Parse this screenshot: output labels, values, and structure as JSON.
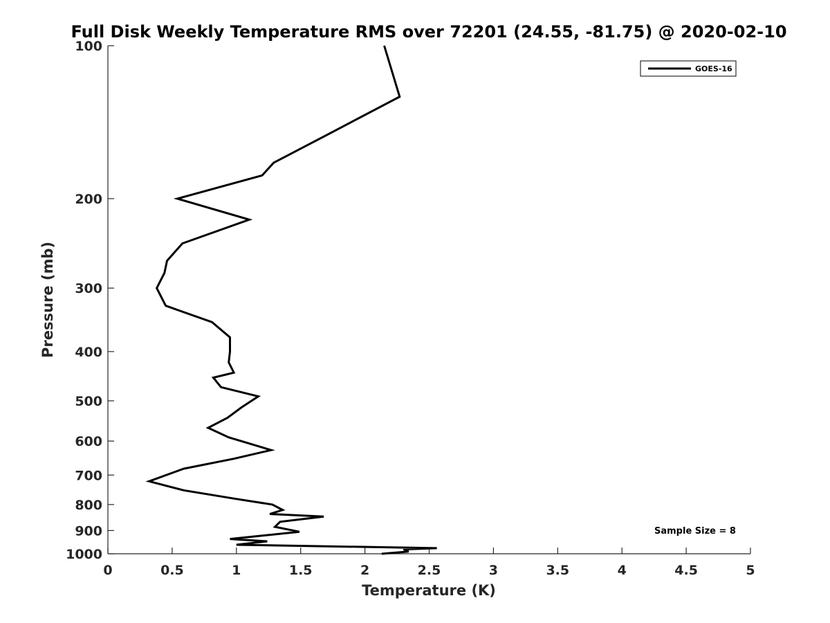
{
  "chart_data": {
    "type": "line",
    "title": "Full Disk Weekly Temperature RMS over 72201 (24.55, -81.75) @ 2020-02-10",
    "xlabel": "Temperature (K)",
    "ylabel": "Pressure (mb)",
    "xlim": [
      0,
      5
    ],
    "ylim": [
      100,
      1000
    ],
    "y_scale": "log",
    "y_reversed": true,
    "x_ticks": [
      "0",
      "0.5",
      "1",
      "1.5",
      "2",
      "2.5",
      "3",
      "3.5",
      "4",
      "4.5",
      "5"
    ],
    "y_ticks": [
      "100",
      "200",
      "300",
      "400",
      "500",
      "600",
      "700",
      "800",
      "900",
      "1000"
    ],
    "grid": false,
    "legend_position": "top-right",
    "series": [
      {
        "name": "GOES-16",
        "color": "#000000",
        "x": [
          2.15,
          2.27,
          1.7,
          1.29,
          1.2,
          0.54,
          1.1,
          0.58,
          0.46,
          0.44,
          0.38,
          0.45,
          0.81,
          0.95,
          0.95,
          0.94,
          0.98,
          0.82,
          0.88,
          1.17,
          1.04,
          0.93,
          0.78,
          0.94,
          1.27,
          0.98,
          0.59,
          0.32,
          0.59,
          1.0,
          1.28,
          1.36,
          1.26,
          1.68,
          1.34,
          1.3,
          1.49,
          0.95,
          1.24,
          1.0,
          2.56,
          2.3,
          2.34,
          2.13
        ],
        "y": [
          100,
          126,
          150,
          170,
          180,
          200,
          220,
          245,
          265,
          280,
          300,
          325,
          350,
          375,
          400,
          420,
          440,
          450,
          470,
          490,
          515,
          540,
          565,
          590,
          625,
          650,
          680,
          720,
          750,
          780,
          800,
          820,
          835,
          845,
          865,
          885,
          905,
          935,
          945,
          960,
          975,
          980,
          990,
          1000
        ]
      }
    ],
    "annotation": "Sample Size = 8"
  }
}
